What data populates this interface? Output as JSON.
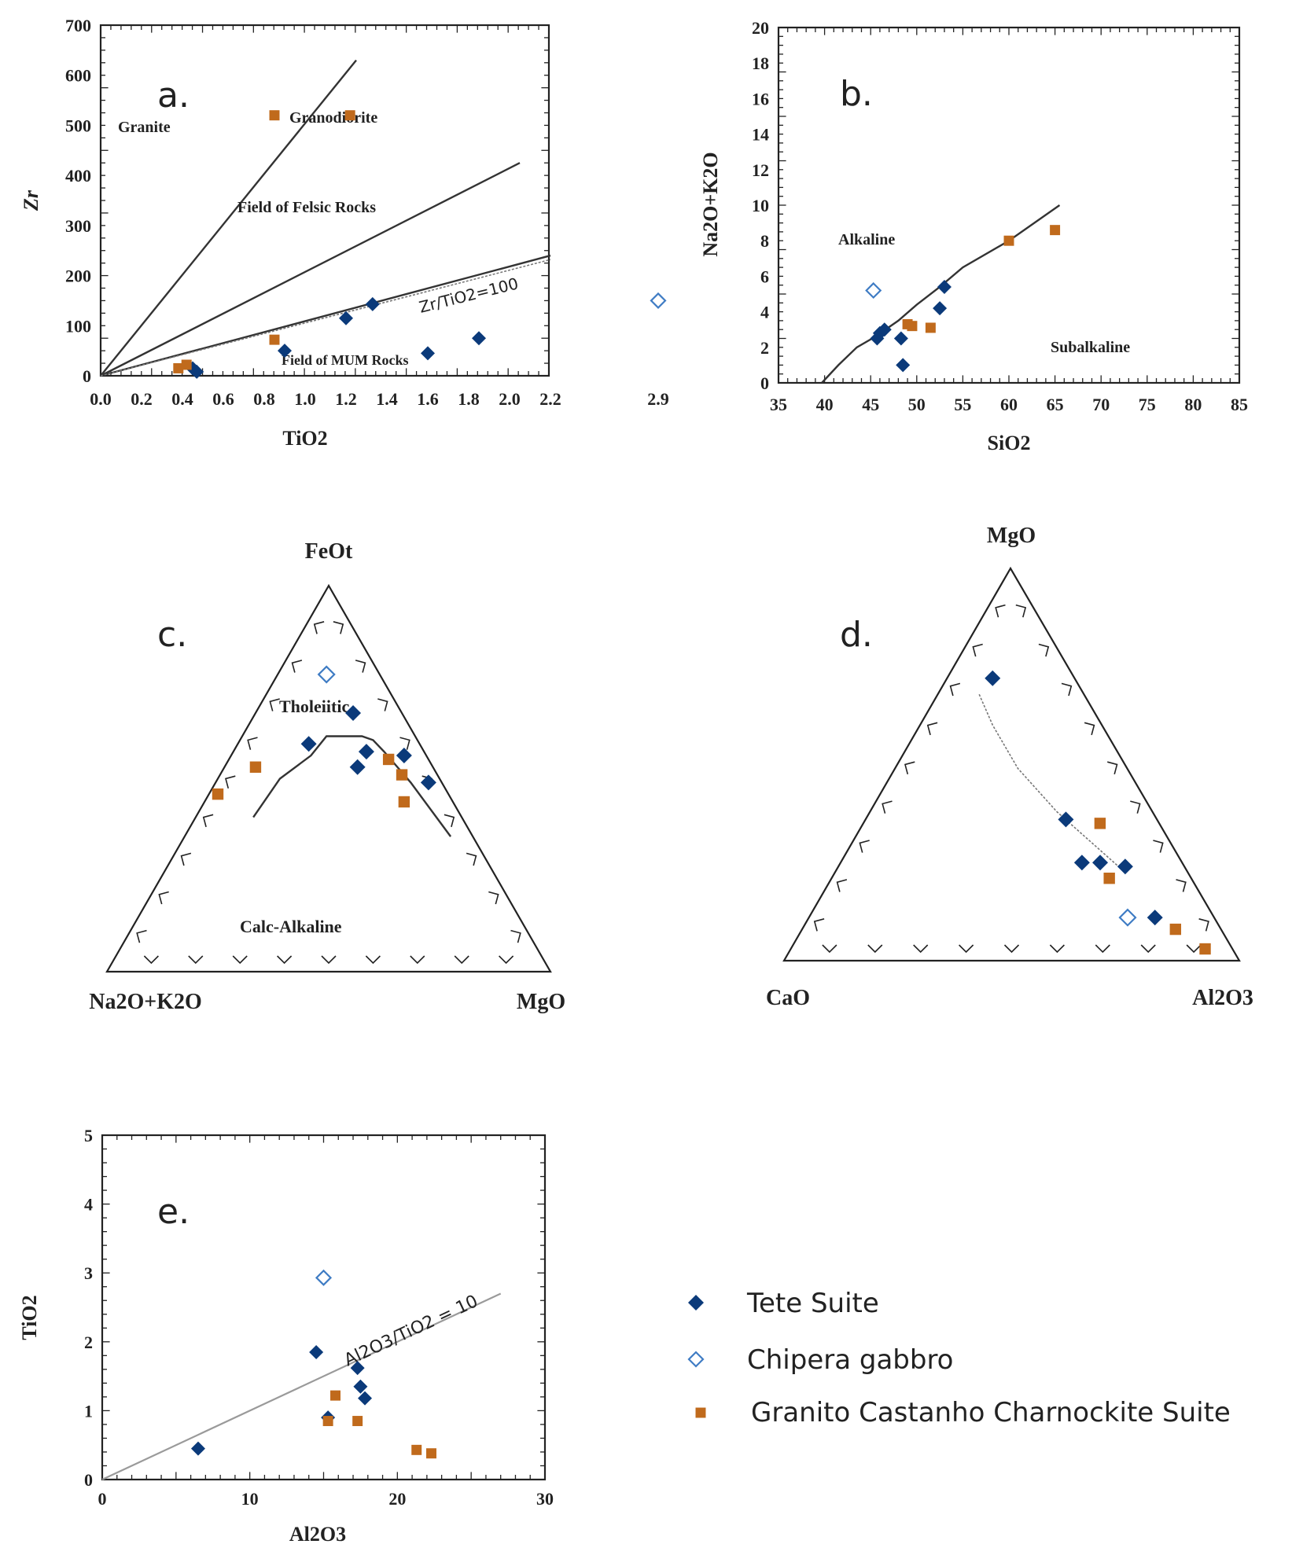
{
  "colors": {
    "tete": "#0b3a7a",
    "chipera": "#3f7cc4",
    "granito": "#c06a1c",
    "axis": "#222222"
  },
  "legend": {
    "items": [
      {
        "key": "tete",
        "label": "Tete Suite",
        "marker": "filled-diamond"
      },
      {
        "key": "chipera",
        "label": "Chipera gabbro",
        "marker": "open-diamond"
      },
      {
        "key": "granito",
        "label": "Granito Castanho Charnockite Suite",
        "marker": "square"
      }
    ]
  },
  "chart_data": [
    {
      "id": "a",
      "panel_label": "a.",
      "type": "scatter",
      "xlabel": "TiO2",
      "ylabel": "Zr",
      "xlim": [
        0,
        2.9
      ],
      "ylim": [
        0,
        700
      ],
      "x_break": "2.2-2.9",
      "xticks": [
        "0.0",
        "0.2",
        "0.4",
        "0.6",
        "0.8",
        "1.0",
        "1.2",
        "1.4",
        "1.6",
        "1.8",
        "2.0",
        "2.2",
        "2.9"
      ],
      "yticks": [
        "0",
        "100",
        "200",
        "300",
        "400",
        "500",
        "600",
        "700"
      ],
      "field_labels": [
        "Granite",
        "Granodiorite",
        "Field of Felsic Rocks",
        "Field of MUM Rocks"
      ],
      "line_label": "Zr/TiO2=100",
      "boundary_lines": [
        {
          "from": [
            0,
            0
          ],
          "to": [
            1.25,
            630
          ]
        },
        {
          "from": [
            0,
            0
          ],
          "to": [
            2.05,
            425
          ]
        },
        {
          "from": [
            0,
            0
          ],
          "to": [
            2.2,
            240
          ]
        }
      ],
      "series": [
        {
          "name": "Tete Suite",
          "points": [
            [
              0.45,
              15
            ],
            [
              0.47,
              8
            ],
            [
              0.9,
              50
            ],
            [
              1.2,
              115
            ],
            [
              1.33,
              143
            ],
            [
              1.6,
              45
            ],
            [
              1.85,
              75
            ]
          ]
        },
        {
          "name": "Chipera gabbro",
          "points": [
            [
              2.9,
              150
            ]
          ]
        },
        {
          "name": "Granito Castanho Charnockite Suite",
          "points": [
            [
              0.38,
              15
            ],
            [
              0.42,
              22
            ],
            [
              0.85,
              72
            ],
            [
              0.85,
              520
            ],
            [
              1.22,
              520
            ]
          ]
        }
      ]
    },
    {
      "id": "b",
      "panel_label": "b.",
      "type": "scatter",
      "xlabel": "SiO2",
      "ylabel": "Na2O+K2O",
      "xlim": [
        35,
        85
      ],
      "ylim": [
        0,
        20
      ],
      "xticks": [
        "35",
        "40",
        "45",
        "50",
        "55",
        "60",
        "65",
        "70",
        "75",
        "80",
        "85"
      ],
      "yticks": [
        "0",
        "2",
        "4",
        "6",
        "8",
        "10",
        "12",
        "14",
        "16",
        "18",
        "20"
      ],
      "field_labels": [
        "Alkaline",
        "Subalkaline"
      ],
      "boundary": [
        [
          39.7,
          0
        ],
        [
          41.5,
          1
        ],
        [
          43.5,
          2
        ],
        [
          45.5,
          2.6
        ],
        [
          48,
          3.5
        ],
        [
          50,
          4.4
        ],
        [
          52.5,
          5.4
        ],
        [
          55,
          6.5
        ],
        [
          60,
          8
        ],
        [
          65.5,
          10
        ]
      ],
      "series": [
        {
          "name": "Tete Suite",
          "points": [
            [
              45.7,
              2.5
            ],
            [
              46,
              2.8
            ],
            [
              46.5,
              3.0
            ],
            [
              48.3,
              2.5
            ],
            [
              48.5,
              1.0
            ],
            [
              52.5,
              4.2
            ],
            [
              53,
              5.4
            ]
          ]
        },
        {
          "name": "Chipera gabbro",
          "points": [
            [
              45.3,
              5.2
            ]
          ]
        },
        {
          "name": "Granito Castanho Charnockite Suite",
          "points": [
            [
              49,
              3.3
            ],
            [
              49.5,
              3.2
            ],
            [
              51.5,
              3.1
            ],
            [
              60,
              8.0
            ],
            [
              65,
              8.6
            ]
          ]
        }
      ]
    },
    {
      "id": "c",
      "panel_label": "c.",
      "type": "ternary",
      "apices": {
        "top": "FeOt",
        "left": "Na2O+K2O",
        "right": "MgO"
      },
      "field_labels": [
        "Tholeiitic",
        "Calc-Alkaline"
      ],
      "boundary": [
        [
          0.47,
          0.4,
          0.13
        ],
        [
          0.36,
          0.5,
          0.14
        ],
        [
          0.26,
          0.56,
          0.18
        ],
        [
          0.2,
          0.61,
          0.19
        ],
        [
          0.12,
          0.61,
          0.27
        ],
        [
          0.1,
          0.6,
          0.3
        ],
        [
          0.09,
          0.57,
          0.34
        ],
        [
          0.07,
          0.49,
          0.44
        ],
        [
          0.05,
          0.35,
          0.6
        ]
      ],
      "series": [
        {
          "name": "Tete Suite",
          "points": [
            [
              0.25,
              0.59,
              0.16
            ],
            [
              0.17,
              0.53,
              0.3
            ],
            [
              0.11,
              0.67,
              0.22
            ],
            [
              0.13,
              0.57,
              0.3
            ],
            [
              0.05,
              0.56,
              0.39
            ],
            [
              0.03,
              0.49,
              0.48
            ]
          ]
        },
        {
          "name": "Chipera gabbro",
          "points": [
            [
              0.12,
              0.77,
              0.11
            ]
          ]
        },
        {
          "name": "Granito Castanho Charnockite Suite",
          "points": [
            [
              0.52,
              0.46,
              0.02
            ],
            [
              0.4,
              0.53,
              0.07
            ],
            [
              0.09,
              0.55,
              0.36
            ],
            [
              0.08,
              0.51,
              0.41
            ],
            [
              0.11,
              0.44,
              0.45
            ]
          ]
        }
      ]
    },
    {
      "id": "d",
      "panel_label": "d.",
      "type": "ternary",
      "apices": {
        "top": "MgO",
        "left": "CaO",
        "right": "Al2O3"
      },
      "trend_curve": [
        [
          0.14,
          0.23,
          0.63
        ],
        [
          0.21,
          0.38,
          0.41
        ],
        [
          0.24,
          0.49,
          0.27
        ],
        [
          0.24,
          0.6,
          0.16
        ],
        [
          0.23,
          0.68,
          0.09
        ]
      ],
      "series": [
        {
          "name": "Tete Suite",
          "points": [
            [
              0.18,
              0.72,
              0.1
            ],
            [
              0.2,
              0.36,
              0.44
            ],
            [
              0.22,
              0.25,
              0.53
            ],
            [
              0.18,
              0.25,
              0.57
            ],
            [
              0.13,
              0.24,
              0.63
            ],
            [
              0.13,
              0.11,
              0.76
            ]
          ]
        },
        {
          "name": "Chipera gabbro",
          "points": [
            [
              0.19,
              0.11,
              0.7
            ]
          ]
        },
        {
          "name": "Granito Castanho Charnockite Suite",
          "points": [
            [
              0.13,
              0.35,
              0.52
            ],
            [
              0.18,
              0.21,
              0.61
            ],
            [
              0.1,
              0.08,
              0.82
            ],
            [
              0.06,
              0.03,
              0.91
            ]
          ]
        }
      ]
    },
    {
      "id": "e",
      "panel_label": "e.",
      "type": "scatter",
      "xlabel": "Al2O3",
      "ylabel": "TiO2",
      "xlim": [
        0,
        30
      ],
      "ylim": [
        0,
        5
      ],
      "xticks": [
        "0",
        "10",
        "20",
        "30"
      ],
      "yticks": [
        "0",
        "1",
        "2",
        "3",
        "4",
        "5"
      ],
      "line_label": "Al2O3/TiO2 = 10",
      "reference_line": {
        "from": [
          0,
          0
        ],
        "to": [
          27,
          2.7
        ]
      },
      "series": [
        {
          "name": "Tete Suite",
          "points": [
            [
              6.5,
              0.45
            ],
            [
              14.5,
              1.85
            ],
            [
              15.3,
              0.9
            ],
            [
              17.3,
              1.62
            ],
            [
              17.5,
              1.35
            ],
            [
              17.8,
              1.18
            ]
          ]
        },
        {
          "name": "Chipera gabbro",
          "points": [
            [
              15,
              2.93
            ]
          ]
        },
        {
          "name": "Granito Castanho Charnockite Suite",
          "points": [
            [
              15.3,
              0.85
            ],
            [
              15.8,
              1.22
            ],
            [
              17.3,
              0.85
            ],
            [
              21.3,
              0.43
            ],
            [
              22.3,
              0.38
            ]
          ]
        }
      ]
    }
  ]
}
